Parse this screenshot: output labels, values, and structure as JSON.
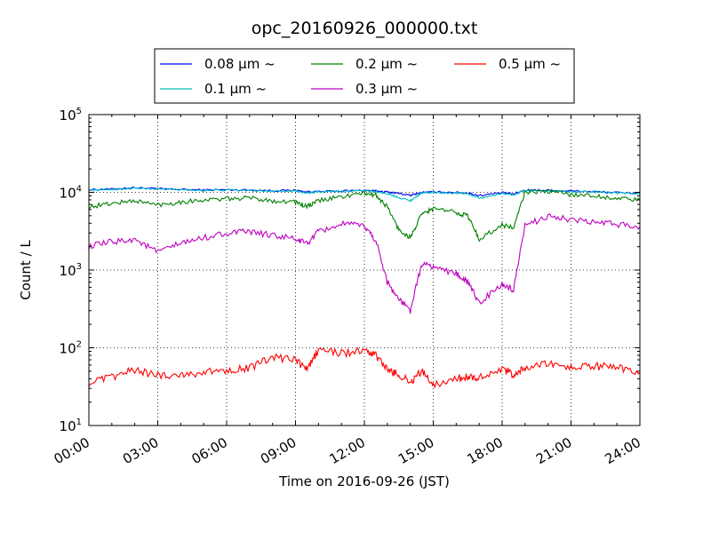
{
  "chart_data": {
    "type": "line",
    "title": "opc_20160926_000000.txt",
    "xlabel": "Time on 2016-09-26 (JST)",
    "ylabel": "Count / L",
    "yscale": "log",
    "xlim": [
      "00:00",
      "24:00"
    ],
    "ylim": [
      10,
      100000
    ],
    "x_ticks": [
      "00:00",
      "03:00",
      "06:00",
      "09:00",
      "12:00",
      "15:00",
      "18:00",
      "21:00",
      "24:00"
    ],
    "y_ticks": [
      {
        "base": "10",
        "exp": "1",
        "value": 10
      },
      {
        "base": "10",
        "exp": "2",
        "value": 100
      },
      {
        "base": "10",
        "exp": "3",
        "value": 1000
      },
      {
        "base": "10",
        "exp": "4",
        "value": 10000
      },
      {
        "base": "10",
        "exp": "5",
        "value": 100000
      }
    ],
    "grid": true,
    "legend_position": "top",
    "x": [
      "00:00",
      "01:00",
      "02:00",
      "03:00",
      "04:00",
      "05:00",
      "06:00",
      "07:00",
      "08:00",
      "09:00",
      "09:30",
      "10:00",
      "11:00",
      "12:00",
      "12:30",
      "13:00",
      "13:30",
      "14:00",
      "14:30",
      "15:00",
      "16:00",
      "16:30",
      "17:00",
      "18:00",
      "18:30",
      "19:00",
      "20:00",
      "21:00",
      "22:00",
      "23:00",
      "24:00"
    ],
    "series": [
      {
        "name": "0.08 μm ~",
        "color": "#0000ff",
        "values": [
          10800,
          11000,
          11500,
          11100,
          10900,
          10700,
          10800,
          10700,
          10500,
          10600,
          10100,
          10200,
          10400,
          10600,
          10400,
          10100,
          9700,
          9100,
          10000,
          10100,
          10000,
          9800,
          9100,
          9900,
          9500,
          10700,
          10600,
          10400,
          10200,
          9900,
          9700
        ]
      },
      {
        "name": "0.1 μm ~",
        "color": "#00bfbf",
        "values": [
          10700,
          10900,
          11300,
          11000,
          10800,
          10600,
          10700,
          10600,
          10400,
          10500,
          9800,
          10100,
          10300,
          10500,
          10200,
          9600,
          8600,
          7800,
          9800,
          10000,
          9800,
          9600,
          8400,
          9700,
          9300,
          10600,
          10500,
          10300,
          10100,
          9800,
          9600
        ]
      },
      {
        "name": "0.2 μm ~",
        "color": "#008000",
        "values": [
          6500,
          7200,
          7800,
          6900,
          7500,
          8000,
          8200,
          8500,
          7800,
          7500,
          6500,
          7800,
          8800,
          9700,
          9200,
          6500,
          3300,
          2600,
          5200,
          6200,
          5500,
          5000,
          2500,
          3800,
          3500,
          10100,
          10300,
          9400,
          9000,
          8400,
          7900
        ]
      },
      {
        "name": "0.3 μm ~",
        "color": "#bf00bf",
        "values": [
          2000,
          2300,
          2500,
          1700,
          2200,
          2600,
          3000,
          3100,
          2800,
          2500,
          2200,
          3100,
          3900,
          3700,
          2400,
          700,
          420,
          300,
          1200,
          1100,
          900,
          700,
          380,
          650,
          550,
          3700,
          5000,
          4400,
          4100,
          3900,
          3600
        ]
      },
      {
        "name": "0.5 μm ~",
        "color": "#ff0000",
        "values": [
          35,
          42,
          52,
          44,
          45,
          48,
          52,
          55,
          75,
          70,
          52,
          95,
          85,
          92,
          80,
          52,
          45,
          36,
          50,
          34,
          40,
          42,
          42,
          52,
          45,
          55,
          62,
          56,
          58,
          56,
          48
        ]
      }
    ]
  }
}
